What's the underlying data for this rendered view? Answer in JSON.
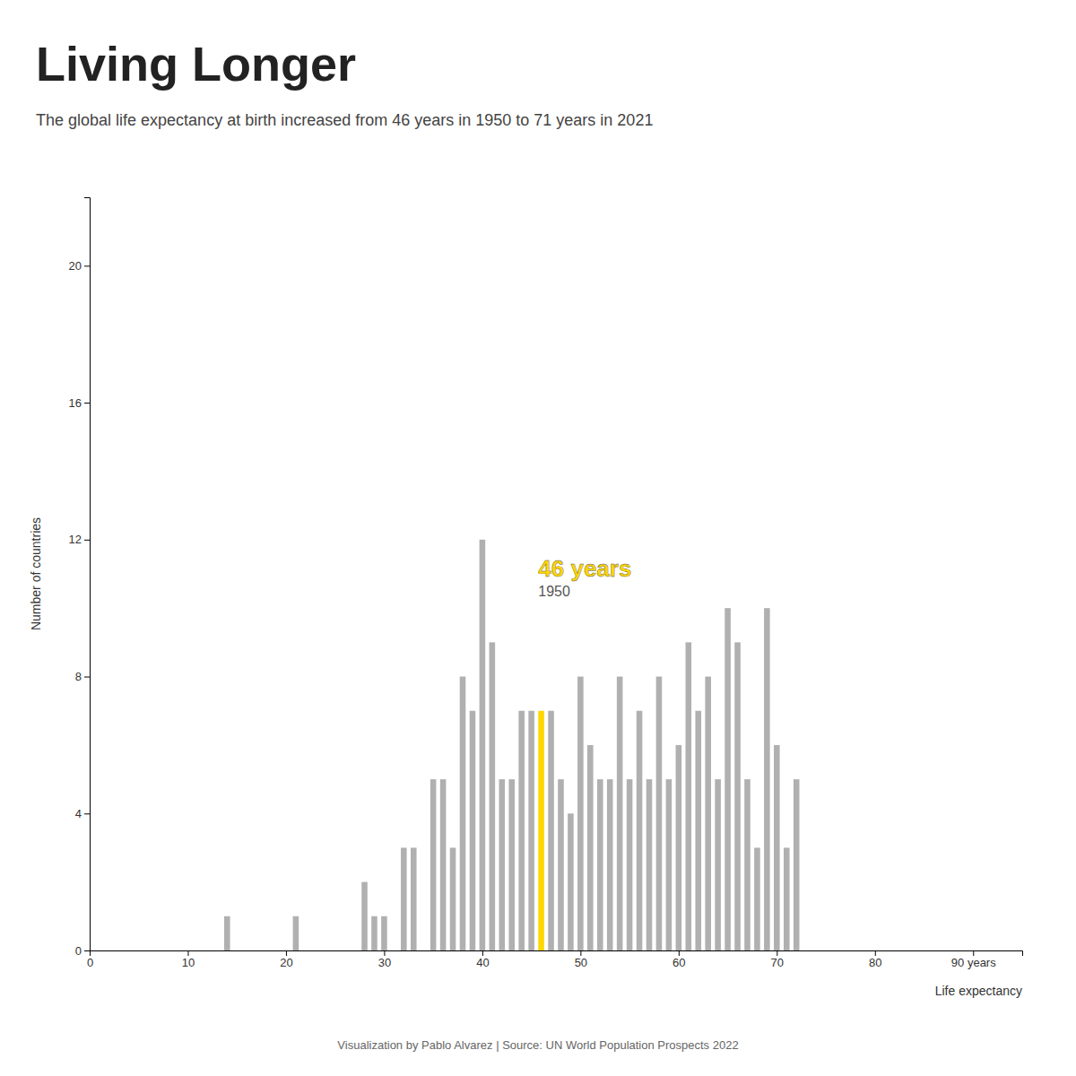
{
  "chart_data": {
    "type": "bar",
    "title": "Living Longer",
    "subtitle": "The global life expectancy at birth increased from 46 years in 1950 to 71 years in 2021",
    "xlabel": "Life expectancy",
    "ylabel": "Number of countries",
    "footer": "Visualization by Pablo Alvarez | Source: UN World Population Prospects 2022",
    "x": [
      14,
      21,
      28,
      29,
      30,
      32,
      33,
      35,
      36,
      37,
      38,
      39,
      40,
      41,
      42,
      43,
      44,
      45,
      46,
      47,
      48,
      49,
      50,
      51,
      52,
      53,
      54,
      55,
      56,
      57,
      58,
      59,
      60,
      61,
      62,
      63,
      64,
      65,
      66,
      67,
      68,
      69,
      70,
      71,
      72
    ],
    "values": [
      1,
      1,
      2,
      1,
      1,
      3,
      3,
      5,
      5,
      3,
      8,
      7,
      12,
      9,
      5,
      5,
      7,
      7,
      7,
      7,
      5,
      4,
      8,
      6,
      5,
      5,
      8,
      5,
      7,
      5,
      8,
      5,
      6,
      9,
      7,
      8,
      5,
      10,
      9,
      5,
      3,
      10,
      6,
      3,
      5
    ],
    "colors": [
      "#b0b0b0",
      "#b0b0b0",
      "#b0b0b0",
      "#b0b0b0",
      "#b0b0b0",
      "#b0b0b0",
      "#b0b0b0",
      "#b0b0b0",
      "#b0b0b0",
      "#b0b0b0",
      "#b0b0b0",
      "#b0b0b0",
      "#b0b0b0",
      "#b0b0b0",
      "#b0b0b0",
      "#b0b0b0",
      "#b0b0b0",
      "#b0b0b0",
      "#FFD700",
      "#b0b0b0",
      "#b0b0b0",
      "#b0b0b0",
      "#b0b0b0",
      "#b0b0b0",
      "#b0b0b0",
      "#b0b0b0",
      "#b0b0b0",
      "#b0b0b0",
      "#b0b0b0",
      "#b0b0b0",
      "#b0b0b0",
      "#b0b0b0",
      "#b0b0b0",
      "#b0b0b0",
      "#b0b0b0",
      "#b0b0b0",
      "#b0b0b0",
      "#b0b0b0",
      "#b0b0b0",
      "#b0b0b0",
      "#b0b0b0",
      "#b0b0b0",
      "#b0b0b0",
      "#b0b0b0",
      "#b0b0b0"
    ],
    "annotations": [
      {
        "text": "46 years",
        "x": 46
      },
      {
        "text": "1950",
        "x": 46
      }
    ],
    "xlim": [
      0,
      95
    ],
    "ylim": [
      0,
      22
    ],
    "xticks": [
      0,
      10,
      20,
      30,
      40,
      50,
      60,
      70,
      80,
      {
        "value": 90,
        "label": "90 years"
      }
    ],
    "yticks": [
      0,
      4,
      8,
      12,
      16,
      20
    ],
    "grid": false
  }
}
